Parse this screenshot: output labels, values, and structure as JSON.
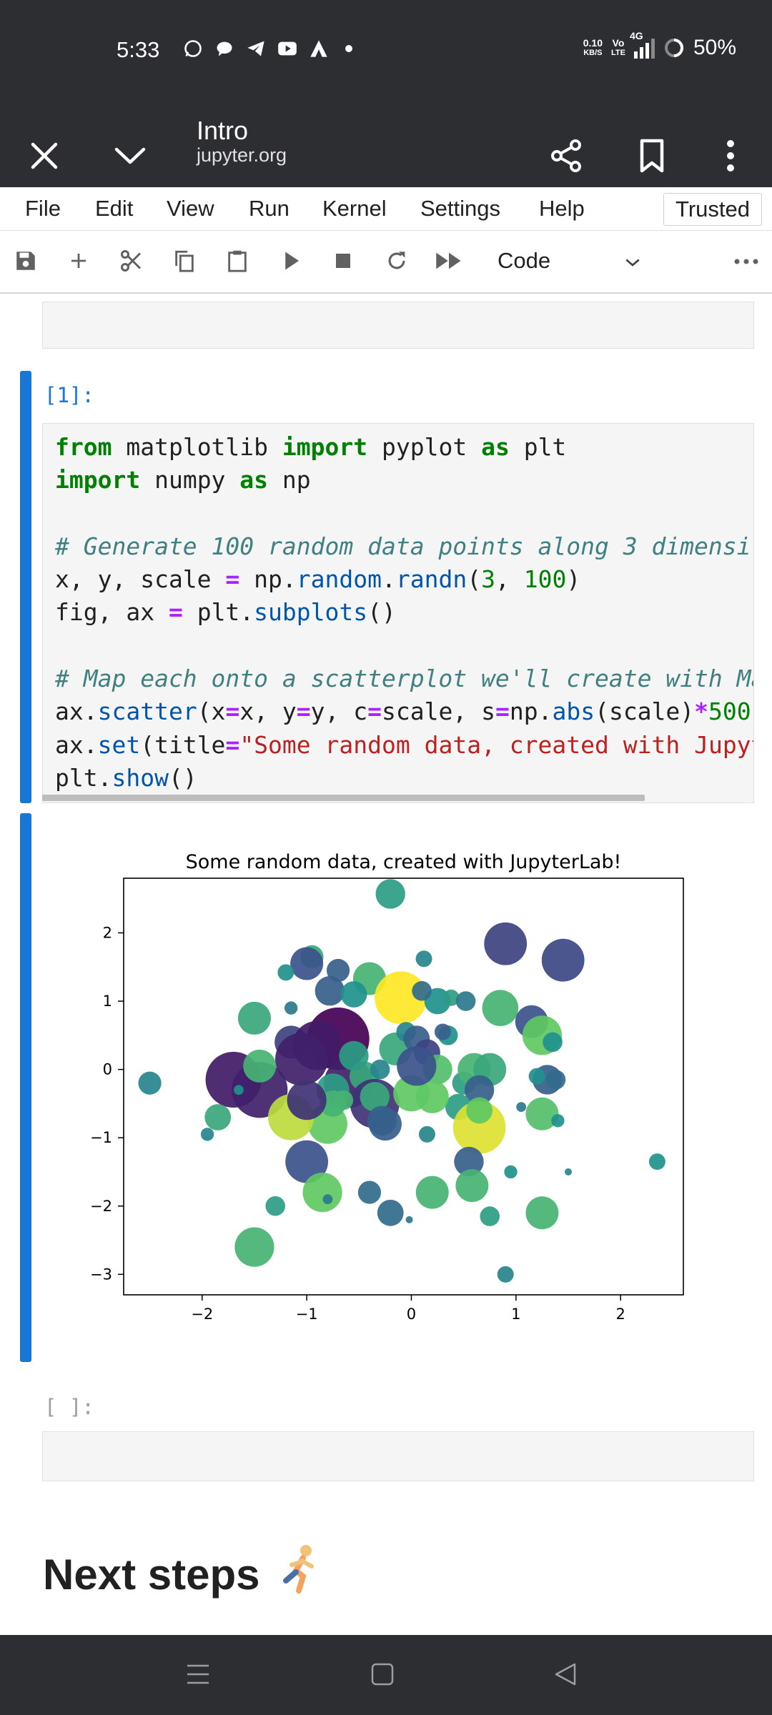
{
  "status_bar": {
    "time": "5:33",
    "net_speed_top": "0.10",
    "net_speed_unit": "KB/S",
    "volte_top": "Vo",
    "volte_bottom": "LTE",
    "network": "4G",
    "battery": "50%"
  },
  "app_bar": {
    "title": "Intro",
    "subtitle": "jupyter.org"
  },
  "menu": {
    "items": [
      "File",
      "Edit",
      "View",
      "Run",
      "Kernel",
      "Settings",
      "Help"
    ],
    "trusted": "Trusted"
  },
  "toolbar": {
    "cell_type": "Code"
  },
  "cells": {
    "code_prompt": "[1]:",
    "empty_prompt": "[ ]:",
    "code_lines": [
      "from matplotlib import pyplot as plt",
      "import numpy as np",
      "",
      "# Generate 100 random data points along 3 dimensi",
      "x, y, scale = np.random.randn(3, 100)",
      "fig, ax = plt.subplots()",
      "",
      "# Map each onto a scatterplot we'll create with Ma",
      "ax.scatter(x=x, y=y, c=scale, s=np.abs(scale)*500",
      "ax.set(title=\"Some random data, created with Jupyt",
      "plt.show()"
    ]
  },
  "heading": {
    "text": "Next steps",
    "emoji": "🏃"
  },
  "chart_data": {
    "type": "scatter",
    "title": "Some random data, created with JupyterLab!",
    "xlabel": "",
    "ylabel": "",
    "xlim": [
      -2.75,
      2.6
    ],
    "ylim": [
      -3.3,
      2.8
    ],
    "xticks": [
      -2,
      -1,
      0,
      1,
      2
    ],
    "yticks": [
      -3,
      -2,
      -1,
      0,
      1,
      2
    ],
    "xtick_labels": [
      "−2",
      "−1",
      "0",
      "1",
      "2"
    ],
    "ytick_labels": [
      "−3",
      "−2",
      "−1",
      "0",
      "1",
      "2"
    ],
    "grid": false,
    "colormap": "viridis",
    "points": [
      {
        "x": -0.2,
        "y": 2.57,
        "c": 0.55,
        "s": 0.9
      },
      {
        "x": -0.95,
        "y": 1.65,
        "c": 0.6,
        "s": 0.7
      },
      {
        "x": 0.9,
        "y": 1.84,
        "c": 0.2,
        "s": 1.3
      },
      {
        "x": 1.45,
        "y": 1.6,
        "c": 0.22,
        "s": 1.3
      },
      {
        "x": -1.0,
        "y": 1.55,
        "c": 0.25,
        "s": 1.0
      },
      {
        "x": -0.7,
        "y": 1.45,
        "c": 0.3,
        "s": 0.7
      },
      {
        "x": 0.12,
        "y": 1.62,
        "c": 0.45,
        "s": 0.5
      },
      {
        "x": -1.2,
        "y": 1.42,
        "c": 0.5,
        "s": 0.5
      },
      {
        "x": -0.4,
        "y": 1.33,
        "c": 0.65,
        "s": 1.0
      },
      {
        "x": -0.78,
        "y": 1.15,
        "c": 0.3,
        "s": 0.9
      },
      {
        "x": -0.55,
        "y": 1.1,
        "c": 0.5,
        "s": 0.8
      },
      {
        "x": -0.1,
        "y": 1.05,
        "c": 1.0,
        "s": 1.6
      },
      {
        "x": 0.25,
        "y": 1.0,
        "c": 0.5,
        "s": 0.8
      },
      {
        "x": 0.38,
        "y": 1.05,
        "c": 0.55,
        "s": 0.5
      },
      {
        "x": 0.52,
        "y": 1.0,
        "c": 0.4,
        "s": 0.6
      },
      {
        "x": 0.85,
        "y": 0.9,
        "c": 0.65,
        "s": 1.1
      },
      {
        "x": 1.15,
        "y": 0.7,
        "c": 0.25,
        "s": 1.0
      },
      {
        "x": 1.25,
        "y": 0.5,
        "c": 0.75,
        "s": 1.2
      },
      {
        "x": 1.35,
        "y": 0.4,
        "c": 0.5,
        "s": 0.6
      },
      {
        "x": -1.5,
        "y": 0.75,
        "c": 0.6,
        "s": 1.0
      },
      {
        "x": -1.15,
        "y": 0.4,
        "c": 0.2,
        "s": 1.0
      },
      {
        "x": -0.7,
        "y": 0.45,
        "c": 0.0,
        "s": 1.9
      },
      {
        "x": -0.9,
        "y": 0.35,
        "c": 0.08,
        "s": 1.5
      },
      {
        "x": -1.05,
        "y": 0.15,
        "c": 0.1,
        "s": 1.6
      },
      {
        "x": -1.7,
        "y": -0.15,
        "c": 0.08,
        "s": 1.7
      },
      {
        "x": -1.45,
        "y": -0.3,
        "c": 0.1,
        "s": 1.7
      },
      {
        "x": -1.45,
        "y": 0.05,
        "c": 0.65,
        "s": 1.0
      },
      {
        "x": -0.6,
        "y": -0.2,
        "c": 0.1,
        "s": 1.5
      },
      {
        "x": -0.45,
        "y": -0.1,
        "c": 0.6,
        "s": 0.9
      },
      {
        "x": -0.35,
        "y": -0.5,
        "c": 0.15,
        "s": 1.5
      },
      {
        "x": -0.25,
        "y": -0.8,
        "c": 0.3,
        "s": 1.0
      },
      {
        "x": -0.15,
        "y": 0.3,
        "c": 0.6,
        "s": 1.0
      },
      {
        "x": -0.05,
        "y": 0.55,
        "c": 0.45,
        "s": 0.6
      },
      {
        "x": 0.05,
        "y": 0.45,
        "c": 0.3,
        "s": 0.8
      },
      {
        "x": 0.15,
        "y": 0.25,
        "c": 0.2,
        "s": 0.8
      },
      {
        "x": 0.25,
        "y": 0.0,
        "c": 0.7,
        "s": 0.9
      },
      {
        "x": 0.35,
        "y": 0.5,
        "c": 0.5,
        "s": 0.6
      },
      {
        "x": 0.5,
        "y": -0.2,
        "c": 0.55,
        "s": 0.7
      },
      {
        "x": 0.6,
        "y": 0.0,
        "c": 0.65,
        "s": 1.0
      },
      {
        "x": 0.75,
        "y": 0.0,
        "c": 0.6,
        "s": 1.0
      },
      {
        "x": 0.65,
        "y": -0.3,
        "c": 0.3,
        "s": 0.9
      },
      {
        "x": 0.45,
        "y": -0.55,
        "c": 0.55,
        "s": 0.8
      },
      {
        "x": 0.2,
        "y": -0.4,
        "c": 0.75,
        "s": 1.0
      },
      {
        "x": 0.0,
        "y": -0.35,
        "c": 0.75,
        "s": 1.1
      },
      {
        "x": -0.35,
        "y": -0.4,
        "c": 0.6,
        "s": 0.9
      },
      {
        "x": -0.75,
        "y": -0.3,
        "c": 0.55,
        "s": 1.0
      },
      {
        "x": -0.8,
        "y": -0.8,
        "c": 0.75,
        "s": 1.2
      },
      {
        "x": -1.15,
        "y": -0.7,
        "c": 0.9,
        "s": 1.4
      },
      {
        "x": -0.75,
        "y": -0.5,
        "c": 0.65,
        "s": 0.8
      },
      {
        "x": 0.65,
        "y": -0.85,
        "c": 0.95,
        "s": 1.6
      },
      {
        "x": 1.3,
        "y": -0.15,
        "c": 0.3,
        "s": 0.9
      },
      {
        "x": 1.25,
        "y": -0.65,
        "c": 0.7,
        "s": 1.0
      },
      {
        "x": 1.4,
        "y": -0.75,
        "c": 0.5,
        "s": 0.4
      },
      {
        "x": 1.2,
        "y": -0.1,
        "c": 0.5,
        "s": 0.5
      },
      {
        "x": -1.85,
        "y": -0.7,
        "c": 0.6,
        "s": 0.8
      },
      {
        "x": -1.95,
        "y": -0.95,
        "c": 0.45,
        "s": 0.4
      },
      {
        "x": -1.65,
        "y": -0.3,
        "c": 0.5,
        "s": 0.3
      },
      {
        "x": -2.5,
        "y": -0.2,
        "c": 0.45,
        "s": 0.7
      },
      {
        "x": -1.0,
        "y": -1.35,
        "c": 0.25,
        "s": 1.3
      },
      {
        "x": -0.85,
        "y": -1.8,
        "c": 0.75,
        "s": 1.2
      },
      {
        "x": -0.8,
        "y": -1.9,
        "c": 0.4,
        "s": 0.3
      },
      {
        "x": -0.4,
        "y": -1.8,
        "c": 0.35,
        "s": 0.7
      },
      {
        "x": -0.2,
        "y": -2.1,
        "c": 0.35,
        "s": 0.8
      },
      {
        "x": 0.2,
        "y": -1.8,
        "c": 0.65,
        "s": 1.0
      },
      {
        "x": 0.55,
        "y": -1.35,
        "c": 0.3,
        "s": 0.9
      },
      {
        "x": 0.58,
        "y": -1.7,
        "c": 0.65,
        "s": 1.0
      },
      {
        "x": 0.95,
        "y": -1.5,
        "c": 0.5,
        "s": 0.4
      },
      {
        "x": 0.75,
        "y": -2.15,
        "c": 0.55,
        "s": 0.6
      },
      {
        "x": 1.25,
        "y": -2.1,
        "c": 0.65,
        "s": 1.0
      },
      {
        "x": 1.5,
        "y": -1.5,
        "c": 0.45,
        "s": 0.2
      },
      {
        "x": 2.35,
        "y": -1.35,
        "c": 0.5,
        "s": 0.5
      },
      {
        "x": -1.3,
        "y": -2.0,
        "c": 0.55,
        "s": 0.6
      },
      {
        "x": -1.5,
        "y": -2.6,
        "c": 0.65,
        "s": 1.2
      },
      {
        "x": 0.9,
        "y": -3.0,
        "c": 0.45,
        "s": 0.5
      },
      {
        "x": -0.02,
        "y": -2.2,
        "c": 0.4,
        "s": 0.15
      },
      {
        "x": 1.05,
        "y": -0.55,
        "c": 0.4,
        "s": 0.3
      },
      {
        "x": 0.15,
        "y": -0.95,
        "c": 0.45,
        "s": 0.5
      },
      {
        "x": 0.3,
        "y": 0.55,
        "c": 0.3,
        "s": 0.5
      },
      {
        "x": -0.3,
        "y": 0.0,
        "c": 0.45,
        "s": 0.6
      },
      {
        "x": 0.05,
        "y": 0.05,
        "c": 0.25,
        "s": 1.2
      },
      {
        "x": -0.55,
        "y": 0.2,
        "c": 0.55,
        "s": 0.9
      },
      {
        "x": 0.1,
        "y": 1.15,
        "c": 0.35,
        "s": 0.6
      },
      {
        "x": -1.15,
        "y": 0.9,
        "c": 0.4,
        "s": 0.4
      },
      {
        "x": 1.38,
        "y": -0.15,
        "c": 0.35,
        "s": 0.6
      },
      {
        "x": 0.65,
        "y": -0.6,
        "c": 0.75,
        "s": 0.8
      },
      {
        "x": -0.65,
        "y": -0.45,
        "c": 0.65,
        "s": 0.6
      },
      {
        "x": -1.0,
        "y": -0.45,
        "c": 0.15,
        "s": 1.2
      },
      {
        "x": -0.28,
        "y": -0.75,
        "c": 0.3,
        "s": 0.9
      }
    ]
  }
}
